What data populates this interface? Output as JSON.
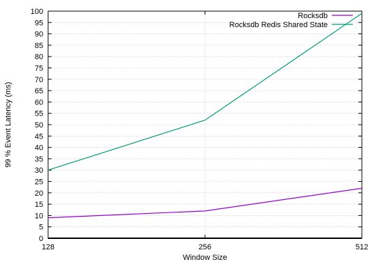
{
  "chart_data": {
    "type": "line",
    "x": [
      128,
      256,
      512
    ],
    "x_tick_labels": [
      "128",
      "256",
      "512"
    ],
    "xlabel": "Window Size",
    "ylabel": "99 % Event Latency (ms)",
    "ylim": [
      0,
      100
    ],
    "y_tick_labels": [
      "0",
      "5",
      "10",
      "15",
      "20",
      "25",
      "30",
      "35",
      "40",
      "45",
      "50",
      "55",
      "60",
      "65",
      "70",
      "75",
      "80",
      "85",
      "90",
      "95",
      "100"
    ],
    "grid": true,
    "legend_position": "top-right",
    "series": [
      {
        "name": "Rocksdb",
        "values": [
          9,
          12,
          22
        ],
        "color": "#9400d3"
      },
      {
        "name": "Rocksdb Redis Shared State",
        "values": [
          30,
          52,
          99
        ],
        "color": "#009e73"
      }
    ]
  }
}
